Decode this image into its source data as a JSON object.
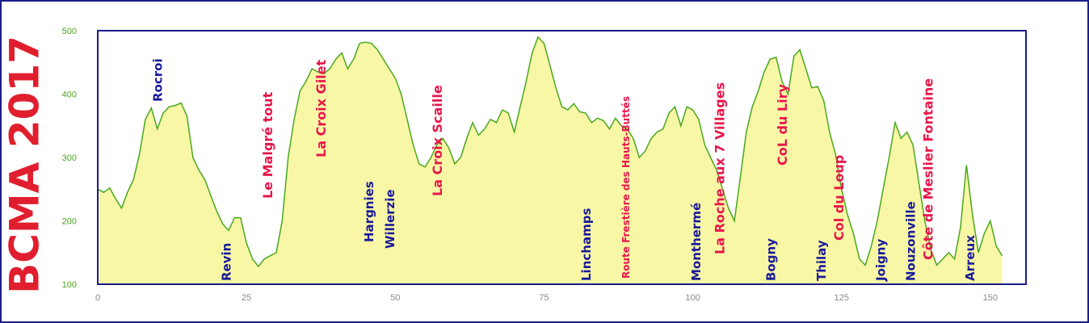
{
  "chart_data": {
    "type": "area",
    "title": "BCMA 2017",
    "xlabel": "",
    "ylabel": "",
    "xlim": [
      0,
      156
    ],
    "ylim": [
      100,
      500
    ],
    "x_ticks": [
      "0",
      "25",
      "50",
      "75",
      "100",
      "125",
      "150"
    ],
    "y_ticks": [
      "100",
      "200",
      "300",
      "400",
      "500"
    ],
    "grid": false,
    "colors": {
      "fill": "#f8f7a6",
      "line": "#4aa81e",
      "frame": "#1c1c8c",
      "place": "#1a1a9a",
      "climb": "#e8174a",
      "title": "#e01e2e",
      "tick": "#8a8a8a",
      "ytick": "#4aa81e"
    },
    "profile": [
      [
        0,
        250
      ],
      [
        1,
        245
      ],
      [
        2,
        252
      ],
      [
        3,
        235
      ],
      [
        4,
        220
      ],
      [
        5,
        245
      ],
      [
        6,
        265
      ],
      [
        7,
        305
      ],
      [
        8,
        360
      ],
      [
        9,
        378
      ],
      [
        10,
        345
      ],
      [
        11,
        370
      ],
      [
        12,
        380
      ],
      [
        13,
        382
      ],
      [
        14,
        386
      ],
      [
        15,
        365
      ],
      [
        16,
        300
      ],
      [
        17,
        280
      ],
      [
        18,
        265
      ],
      [
        19,
        240
      ],
      [
        20,
        215
      ],
      [
        21,
        195
      ],
      [
        22,
        185
      ],
      [
        23,
        205
      ],
      [
        24,
        205
      ],
      [
        25,
        165
      ],
      [
        26,
        140
      ],
      [
        27,
        128
      ],
      [
        28,
        140
      ],
      [
        29,
        145
      ],
      [
        30,
        150
      ],
      [
        31,
        200
      ],
      [
        32,
        300
      ],
      [
        33,
        360
      ],
      [
        34,
        405
      ],
      [
        35,
        420
      ],
      [
        36,
        440
      ],
      [
        37,
        435
      ],
      [
        38,
        432
      ],
      [
        39,
        440
      ],
      [
        40,
        455
      ],
      [
        41,
        465
      ],
      [
        42,
        440
      ],
      [
        43,
        455
      ],
      [
        44,
        480
      ],
      [
        45,
        482
      ],
      [
        46,
        480
      ],
      [
        47,
        470
      ],
      [
        48,
        455
      ],
      [
        49,
        440
      ],
      [
        50,
        425
      ],
      [
        51,
        400
      ],
      [
        52,
        360
      ],
      [
        53,
        320
      ],
      [
        54,
        290
      ],
      [
        55,
        285
      ],
      [
        56,
        300
      ],
      [
        57,
        320
      ],
      [
        58,
        330
      ],
      [
        59,
        315
      ],
      [
        60,
        290
      ],
      [
        61,
        300
      ],
      [
        62,
        330
      ],
      [
        63,
        355
      ],
      [
        64,
        335
      ],
      [
        65,
        345
      ],
      [
        66,
        360
      ],
      [
        67,
        355
      ],
      [
        68,
        375
      ],
      [
        69,
        370
      ],
      [
        70,
        340
      ],
      [
        71,
        380
      ],
      [
        72,
        420
      ],
      [
        73,
        465
      ],
      [
        74,
        490
      ],
      [
        75,
        480
      ],
      [
        76,
        445
      ],
      [
        77,
        410
      ],
      [
        78,
        380
      ],
      [
        79,
        375
      ],
      [
        80,
        385
      ],
      [
        81,
        372
      ],
      [
        82,
        370
      ],
      [
        83,
        355
      ],
      [
        84,
        362
      ],
      [
        85,
        358
      ],
      [
        86,
        345
      ],
      [
        87,
        362
      ],
      [
        88,
        350
      ],
      [
        89,
        345
      ],
      [
        90,
        330
      ],
      [
        91,
        300
      ],
      [
        92,
        310
      ],
      [
        93,
        330
      ],
      [
        94,
        340
      ],
      [
        95,
        345
      ],
      [
        96,
        370
      ],
      [
        97,
        380
      ],
      [
        98,
        350
      ],
      [
        99,
        380
      ],
      [
        100,
        375
      ],
      [
        101,
        360
      ],
      [
        102,
        320
      ],
      [
        103,
        300
      ],
      [
        104,
        280
      ],
      [
        105,
        250
      ],
      [
        106,
        220
      ],
      [
        107,
        200
      ],
      [
        108,
        270
      ],
      [
        109,
        340
      ],
      [
        110,
        380
      ],
      [
        111,
        405
      ],
      [
        112,
        435
      ],
      [
        113,
        455
      ],
      [
        114,
        458
      ],
      [
        115,
        420
      ],
      [
        116,
        400
      ],
      [
        117,
        460
      ],
      [
        118,
        470
      ],
      [
        119,
        440
      ],
      [
        120,
        410
      ],
      [
        121,
        412
      ],
      [
        122,
        390
      ],
      [
        123,
        340
      ],
      [
        124,
        305
      ],
      [
        125,
        250
      ],
      [
        126,
        210
      ],
      [
        127,
        180
      ],
      [
        128,
        140
      ],
      [
        129,
        130
      ],
      [
        130,
        160
      ],
      [
        131,
        200
      ],
      [
        132,
        250
      ],
      [
        133,
        300
      ],
      [
        134,
        355
      ],
      [
        135,
        330
      ],
      [
        136,
        340
      ],
      [
        137,
        320
      ],
      [
        138,
        260
      ],
      [
        139,
        200
      ],
      [
        140,
        155
      ],
      [
        141,
        130
      ],
      [
        142,
        140
      ],
      [
        143,
        150
      ],
      [
        144,
        140
      ],
      [
        145,
        190
      ],
      [
        146,
        288
      ],
      [
        147,
        210
      ],
      [
        148,
        150
      ],
      [
        149,
        180
      ],
      [
        150,
        200
      ],
      [
        151,
        160
      ],
      [
        152,
        145
      ]
    ],
    "places": [
      {
        "label": "Rocroi",
        "x": 10
      },
      {
        "label": "Revin",
        "x": 21.5
      },
      {
        "label": "Hargnies",
        "x": 45.5
      },
      {
        "label": "Willerzie",
        "x": 49
      },
      {
        "label": "Linchamps",
        "x": 82
      },
      {
        "label": "Monthermé",
        "x": 100.5
      },
      {
        "label": "Bogny",
        "x": 113
      },
      {
        "label": "Thilay",
        "x": 121.5
      },
      {
        "label": "Joigny",
        "x": 131.5
      },
      {
        "label": "Nouzonville",
        "x": 136.5
      },
      {
        "label": "Arreux",
        "x": 146.5
      }
    ],
    "climbs": [
      {
        "label": "Le Malgré tout",
        "x": 28.5
      },
      {
        "label": "La Croix Gilet",
        "x": 37.5
      },
      {
        "label": "La Croix Scaille",
        "x": 57
      },
      {
        "label": "Route Frestière des Hauts-Buttés",
        "x": 88.5
      },
      {
        "label": "La Roche aux 7 Villages",
        "x": 104.5
      },
      {
        "label": "CoL du Liry",
        "x": 115
      },
      {
        "label": "Col du Loup",
        "x": 124.5
      },
      {
        "label": "Côte de Meslier Fontaine",
        "x": 139.5
      }
    ]
  }
}
